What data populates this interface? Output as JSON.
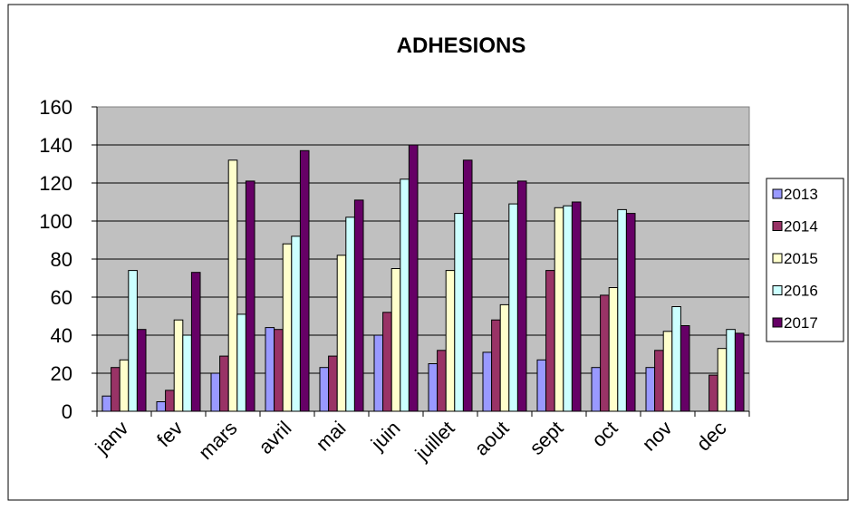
{
  "chart_data": {
    "type": "bar",
    "title": "ADHESIONS",
    "xlabel": "",
    "ylabel": "",
    "ylim": [
      0,
      160
    ],
    "yticks": [
      0,
      20,
      40,
      60,
      80,
      100,
      120,
      140,
      160
    ],
    "grid": true,
    "legend_position": "right",
    "categories": [
      "janv",
      "fev",
      "mars",
      "avril",
      "mai",
      "juin",
      "juillet",
      "aout",
      "sept",
      "oct",
      "nov",
      "dec"
    ],
    "series": [
      {
        "name": "2013",
        "color": "#9999ff",
        "values": [
          8,
          5,
          20,
          44,
          23,
          40,
          25,
          31,
          27,
          23,
          23,
          0
        ]
      },
      {
        "name": "2014",
        "color": "#993366",
        "values": [
          23,
          11,
          29,
          43,
          29,
          52,
          32,
          48,
          74,
          61,
          32,
          19
        ]
      },
      {
        "name": "2015",
        "color": "#ffffcc",
        "values": [
          27,
          48,
          132,
          88,
          82,
          75,
          74,
          56,
          107,
          65,
          42,
          33
        ]
      },
      {
        "name": "2016",
        "color": "#ccffff",
        "values": [
          74,
          40,
          51,
          92,
          102,
          122,
          104,
          109,
          108,
          106,
          55,
          43
        ]
      },
      {
        "name": "2017",
        "color": "#660066",
        "values": [
          43,
          73,
          121,
          137,
          111,
          140,
          132,
          121,
          110,
          104,
          45,
          41
        ]
      }
    ]
  }
}
